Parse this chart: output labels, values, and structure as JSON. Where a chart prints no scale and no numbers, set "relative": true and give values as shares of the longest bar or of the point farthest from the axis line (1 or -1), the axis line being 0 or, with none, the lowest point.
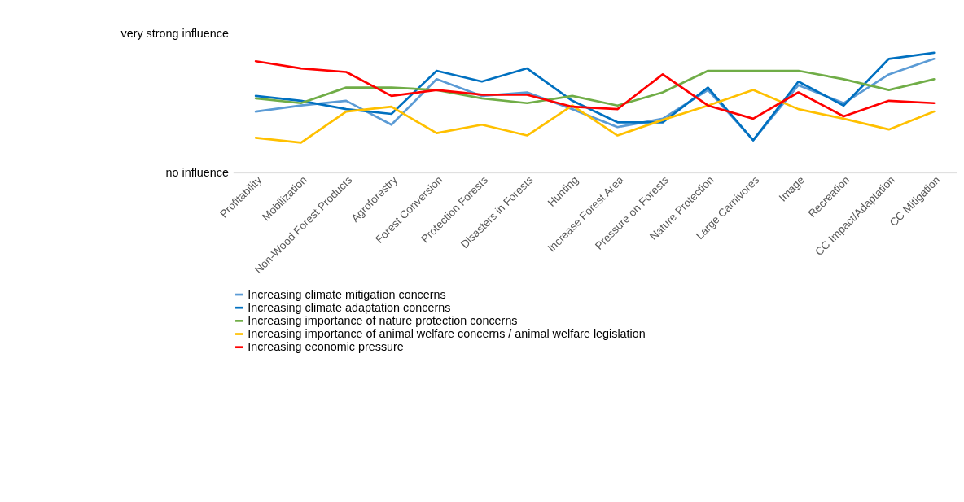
{
  "chart_data": {
    "type": "line",
    "relative": true,
    "categories": [
      "Profitability",
      "Mobilization",
      "Non-Wood Forest Products",
      "Agroforestry",
      "Forest Conversion",
      "Protection Forests",
      "Disasters in Forests",
      "Hunting",
      "Increase Forest Area",
      "Pressure on Forests",
      "Nature Protection",
      "Large Carnivores",
      "Image",
      "Recreation",
      "CC Impact/Adaptation",
      "CC Mitigation"
    ],
    "series": [
      {
        "name": "Increasing climate mitigation concerns",
        "color": "#5b9bd5",
        "values": [
          0.51,
          0.56,
          0.6,
          0.4,
          0.78,
          0.64,
          0.67,
          0.53,
          0.38,
          0.45,
          0.69,
          0.27,
          0.73,
          0.58,
          0.82,
          0.95
        ]
      },
      {
        "name": "Increasing climate adaptation concerns",
        "color": "#0070c0",
        "values": [
          0.64,
          0.6,
          0.53,
          0.49,
          0.85,
          0.76,
          0.87,
          0.6,
          0.42,
          0.42,
          0.71,
          0.27,
          0.76,
          0.56,
          0.95,
          1
        ]
      },
      {
        "name": "Increasing importance of nature protection concerns",
        "color": "#70ad47",
        "values": [
          0.62,
          0.58,
          0.71,
          0.71,
          0.69,
          0.62,
          0.58,
          0.64,
          0.56,
          0.67,
          0.85,
          0.85,
          0.85,
          0.78,
          0.69,
          0.78
        ]
      },
      {
        "name": "Increasing importance of animal welfare concerns / animal welfare legislation",
        "color": "#ffc000",
        "values": [
          0.29,
          0.25,
          0.51,
          0.55,
          0.33,
          0.4,
          0.31,
          0.56,
          0.31,
          0.44,
          0.56,
          0.69,
          0.53,
          0.45,
          0.36,
          0.51
        ]
      },
      {
        "name": "Increasing economic pressure",
        "color": "#ff0000",
        "values": [
          0.93,
          0.87,
          0.84,
          0.64,
          0.69,
          0.65,
          0.65,
          0.55,
          0.53,
          0.82,
          0.56,
          0.45,
          0.67,
          0.47,
          0.6,
          0.58
        ]
      }
    ],
    "annotations": [
      "very strong influence",
      "no influence"
    ],
    "legend": "bottom"
  }
}
